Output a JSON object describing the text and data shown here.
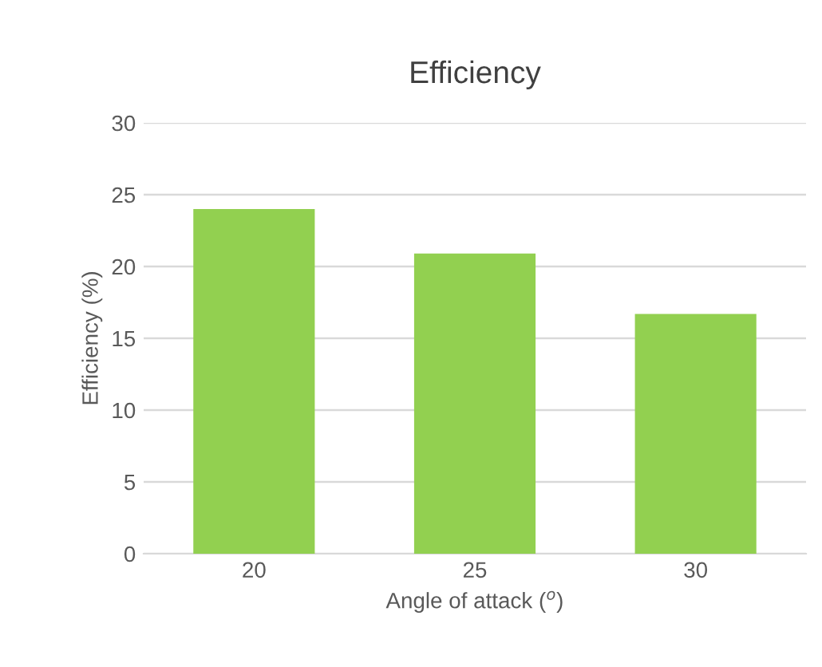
{
  "chart_data": {
    "type": "bar",
    "title": "Efficiency",
    "xlabel": "Angle of attack ($^{o}$)",
    "ylabel": "Efficiency (%)",
    "categories": [
      "20",
      "25",
      "30"
    ],
    "values": [
      24.0,
      20.9,
      16.7
    ],
    "color": "#92d050",
    "ylim": [
      0,
      30
    ],
    "yticks": [
      0,
      5,
      10,
      15,
      20,
      25,
      30
    ],
    "grid": "y",
    "legend": false
  }
}
